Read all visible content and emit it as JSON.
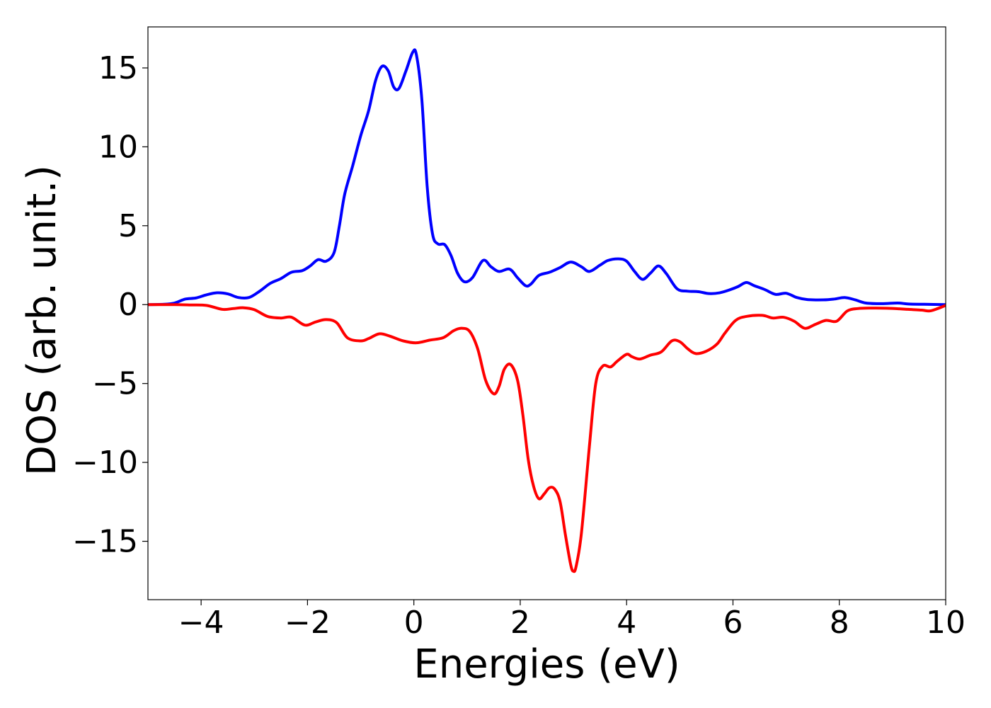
{
  "chart_data": {
    "type": "line",
    "title": "",
    "xlabel": "Energies (eV)",
    "ylabel": "DOS (arb. unit.)",
    "xlim": [
      -5,
      10
    ],
    "ylim": [
      -18.7,
      17.6
    ],
    "xticks": [
      -4,
      -2,
      0,
      2,
      4,
      6,
      8,
      10
    ],
    "xtick_labels": [
      "−4",
      "−2",
      "0",
      "2",
      "4",
      "6",
      "8",
      "10"
    ],
    "yticks": [
      15,
      10,
      5,
      0,
      -5,
      -10,
      -15
    ],
    "ytick_labels": [
      "15",
      "10",
      "5",
      "0",
      "−5",
      "−10",
      "−15"
    ],
    "grid": false,
    "legend": "none",
    "series": [
      {
        "color": "#0000ff",
        "points": [
          [
            -5,
            0
          ],
          [
            -4.7,
            0.02
          ],
          [
            -4.5,
            0.1
          ],
          [
            -4.3,
            0.35
          ],
          [
            -4.1,
            0.42
          ],
          [
            -3.9,
            0.62
          ],
          [
            -3.7,
            0.75
          ],
          [
            -3.5,
            0.68
          ],
          [
            -3.3,
            0.45
          ],
          [
            -3.1,
            0.45
          ],
          [
            -2.9,
            0.85
          ],
          [
            -2.7,
            1.35
          ],
          [
            -2.5,
            1.65
          ],
          [
            -2.3,
            2.05
          ],
          [
            -2.1,
            2.15
          ],
          [
            -1.95,
            2.45
          ],
          [
            -1.8,
            2.85
          ],
          [
            -1.65,
            2.75
          ],
          [
            -1.5,
            3.3
          ],
          [
            -1.4,
            5.0
          ],
          [
            -1.3,
            7.0
          ],
          [
            -1.15,
            8.8
          ],
          [
            -1.0,
            10.7
          ],
          [
            -0.85,
            12.3
          ],
          [
            -0.72,
            14.2
          ],
          [
            -0.6,
            15.1
          ],
          [
            -0.48,
            14.8
          ],
          [
            -0.38,
            13.8
          ],
          [
            -0.28,
            13.7
          ],
          [
            -0.15,
            14.8
          ],
          [
            -0.02,
            16.0
          ],
          [
            0.05,
            15.8
          ],
          [
            0.15,
            13.0
          ],
          [
            0.25,
            7.5
          ],
          [
            0.35,
            4.5
          ],
          [
            0.45,
            3.85
          ],
          [
            0.58,
            3.8
          ],
          [
            0.7,
            3.1
          ],
          [
            0.82,
            2.0
          ],
          [
            0.95,
            1.45
          ],
          [
            1.1,
            1.7
          ],
          [
            1.3,
            2.8
          ],
          [
            1.45,
            2.4
          ],
          [
            1.6,
            2.1
          ],
          [
            1.8,
            2.25
          ],
          [
            1.95,
            1.7
          ],
          [
            2.1,
            1.2
          ],
          [
            2.2,
            1.3
          ],
          [
            2.35,
            1.85
          ],
          [
            2.55,
            2.05
          ],
          [
            2.75,
            2.35
          ],
          [
            2.95,
            2.7
          ],
          [
            3.15,
            2.4
          ],
          [
            3.3,
            2.1
          ],
          [
            3.5,
            2.5
          ],
          [
            3.65,
            2.8
          ],
          [
            3.85,
            2.9
          ],
          [
            4.0,
            2.75
          ],
          [
            4.15,
            2.1
          ],
          [
            4.3,
            1.6
          ],
          [
            4.45,
            2.0
          ],
          [
            4.6,
            2.45
          ],
          [
            4.75,
            1.95
          ],
          [
            4.95,
            1.0
          ],
          [
            5.15,
            0.85
          ],
          [
            5.35,
            0.82
          ],
          [
            5.55,
            0.7
          ],
          [
            5.75,
            0.75
          ],
          [
            5.95,
            0.95
          ],
          [
            6.1,
            1.15
          ],
          [
            6.25,
            1.4
          ],
          [
            6.4,
            1.2
          ],
          [
            6.6,
            0.95
          ],
          [
            6.8,
            0.65
          ],
          [
            7.0,
            0.72
          ],
          [
            7.2,
            0.45
          ],
          [
            7.4,
            0.32
          ],
          [
            7.7,
            0.3
          ],
          [
            7.9,
            0.35
          ],
          [
            8.1,
            0.45
          ],
          [
            8.3,
            0.3
          ],
          [
            8.5,
            0.1
          ],
          [
            8.8,
            0.06
          ],
          [
            9.1,
            0.1
          ],
          [
            9.3,
            0.04
          ],
          [
            9.6,
            0.02
          ],
          [
            10,
            0
          ]
        ]
      },
      {
        "color": "#ff0000",
        "points": [
          [
            -5,
            0
          ],
          [
            -4.5,
            0
          ],
          [
            -4.2,
            -0.02
          ],
          [
            -3.9,
            -0.05
          ],
          [
            -3.6,
            -0.3
          ],
          [
            -3.4,
            -0.25
          ],
          [
            -3.2,
            -0.2
          ],
          [
            -3.0,
            -0.32
          ],
          [
            -2.75,
            -0.75
          ],
          [
            -2.5,
            -0.85
          ],
          [
            -2.3,
            -0.8
          ],
          [
            -2.05,
            -1.3
          ],
          [
            -1.85,
            -1.1
          ],
          [
            -1.65,
            -0.95
          ],
          [
            -1.45,
            -1.15
          ],
          [
            -1.25,
            -2.1
          ],
          [
            -1.0,
            -2.3
          ],
          [
            -0.85,
            -2.15
          ],
          [
            -0.65,
            -1.85
          ],
          [
            -0.45,
            -2.0
          ],
          [
            -0.2,
            -2.3
          ],
          [
            0.05,
            -2.42
          ],
          [
            0.3,
            -2.25
          ],
          [
            0.55,
            -2.1
          ],
          [
            0.75,
            -1.65
          ],
          [
            0.9,
            -1.5
          ],
          [
            1.05,
            -1.7
          ],
          [
            1.2,
            -2.8
          ],
          [
            1.35,
            -4.8
          ],
          [
            1.5,
            -5.65
          ],
          [
            1.6,
            -5.2
          ],
          [
            1.7,
            -4.1
          ],
          [
            1.82,
            -3.8
          ],
          [
            1.95,
            -4.8
          ],
          [
            2.05,
            -7.0
          ],
          [
            2.15,
            -9.8
          ],
          [
            2.25,
            -11.5
          ],
          [
            2.35,
            -12.3
          ],
          [
            2.45,
            -12.0
          ],
          [
            2.55,
            -11.6
          ],
          [
            2.65,
            -11.7
          ],
          [
            2.75,
            -12.5
          ],
          [
            2.85,
            -14.6
          ],
          [
            2.95,
            -16.5
          ],
          [
            3.0,
            -16.9
          ],
          [
            3.05,
            -16.6
          ],
          [
            3.15,
            -14.5
          ],
          [
            3.3,
            -9.0
          ],
          [
            3.42,
            -5.0
          ],
          [
            3.55,
            -3.9
          ],
          [
            3.7,
            -3.95
          ],
          [
            3.82,
            -3.6
          ],
          [
            4.0,
            -3.15
          ],
          [
            4.1,
            -3.3
          ],
          [
            4.25,
            -3.45
          ],
          [
            4.45,
            -3.2
          ],
          [
            4.65,
            -3.0
          ],
          [
            4.85,
            -2.3
          ],
          [
            5.0,
            -2.35
          ],
          [
            5.15,
            -2.8
          ],
          [
            5.3,
            -3.1
          ],
          [
            5.5,
            -2.95
          ],
          [
            5.7,
            -2.5
          ],
          [
            5.85,
            -1.8
          ],
          [
            6.05,
            -1.0
          ],
          [
            6.25,
            -0.75
          ],
          [
            6.55,
            -0.68
          ],
          [
            6.75,
            -0.85
          ],
          [
            6.95,
            -0.8
          ],
          [
            7.15,
            -1.05
          ],
          [
            7.35,
            -1.5
          ],
          [
            7.55,
            -1.25
          ],
          [
            7.75,
            -1.0
          ],
          [
            7.95,
            -1.05
          ],
          [
            8.15,
            -0.4
          ],
          [
            8.35,
            -0.25
          ],
          [
            8.6,
            -0.22
          ],
          [
            8.9,
            -0.23
          ],
          [
            9.3,
            -0.3
          ],
          [
            9.55,
            -0.35
          ],
          [
            9.7,
            -0.4
          ],
          [
            9.85,
            -0.25
          ],
          [
            10,
            -0.05
          ]
        ]
      }
    ]
  }
}
